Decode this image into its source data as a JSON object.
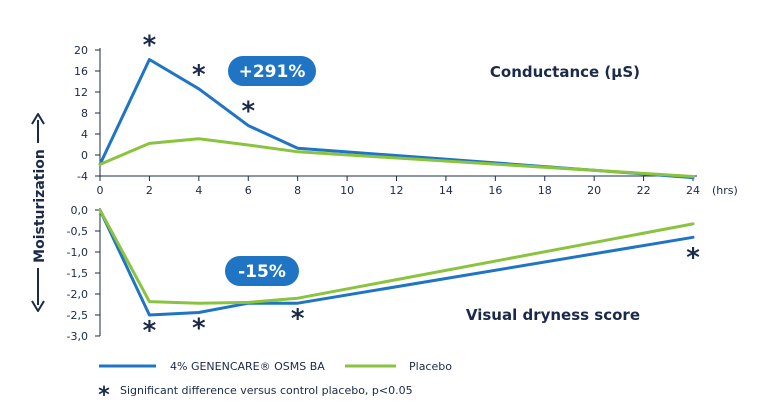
{
  "chart_data": [
    {
      "type": "line",
      "title": "Conductance (µS)",
      "x_unit": "(hrs)",
      "x": [
        0,
        2,
        4,
        6,
        8,
        10,
        12,
        14,
        16,
        18,
        20,
        22,
        24
      ],
      "x_ticks": [
        "0",
        "2",
        "4",
        "6",
        "8",
        "10",
        "12",
        "14",
        "16",
        "18",
        "20",
        "22",
        "24"
      ],
      "ylim": [
        -4,
        20
      ],
      "y_ticks": [
        "20",
        "16",
        "12",
        "8",
        "4",
        "0",
        "-4"
      ],
      "y_tick_values": [
        20,
        16,
        12,
        8,
        4,
        0,
        -4
      ],
      "series": [
        {
          "name": "4% GENENCARE® OSMS BA",
          "color": "#1f75c4",
          "x": [
            0,
            2,
            4,
            6,
            8,
            24
          ],
          "values": [
            -1.8,
            18.2,
            12.6,
            5.6,
            1.3,
            -4.3
          ]
        },
        {
          "name": "Placebo",
          "color": "#8ac43f",
          "x": [
            0,
            2,
            4,
            6,
            8,
            24
          ],
          "values": [
            -1.8,
            2.2,
            3.1,
            1.9,
            0.6,
            -4.1
          ]
        }
      ],
      "significance_at": [
        2,
        4,
        6
      ],
      "badge": "+291%"
    },
    {
      "type": "line",
      "title": "Visual dryness score",
      "xlim": [
        0,
        24
      ],
      "ylim": [
        -3.0,
        0.0
      ],
      "y_ticks": [
        "0,0",
        "-0,5",
        "-1,0",
        "-1,5",
        "-2,0",
        "-2,5",
        "-3,0"
      ],
      "y_tick_values": [
        0,
        -0.5,
        -1.0,
        -1.5,
        -2.0,
        -2.5,
        -3.0
      ],
      "series": [
        {
          "name": "4% GENENCARE® OSMS BA",
          "color": "#1f75c4",
          "x": [
            0,
            2,
            4,
            6,
            8,
            24
          ],
          "values": [
            0,
            -2.5,
            -2.44,
            -2.22,
            -2.22,
            -0.65
          ]
        },
        {
          "name": "Placebo",
          "color": "#8ac43f",
          "x": [
            0,
            2,
            4,
            6,
            8,
            24
          ],
          "values": [
            0,
            -2.18,
            -2.22,
            -2.2,
            -2.1,
            -0.33
          ]
        }
      ],
      "significance_at": [
        2,
        4,
        8,
        24
      ],
      "badge": "-15%"
    }
  ],
  "y_axis_title": "Moisturization",
  "legend": [
    {
      "label": "4% GENENCARE® OSMS BA",
      "color": "#1f75c4"
    },
    {
      "label": "Placebo",
      "color": "#8ac43f"
    }
  ],
  "footnote": "Significant difference versus control placebo, p<0.05",
  "colors": {
    "text": "#1b2a4a",
    "axis": "#1b2a4a",
    "badge": "#1f75c4"
  }
}
